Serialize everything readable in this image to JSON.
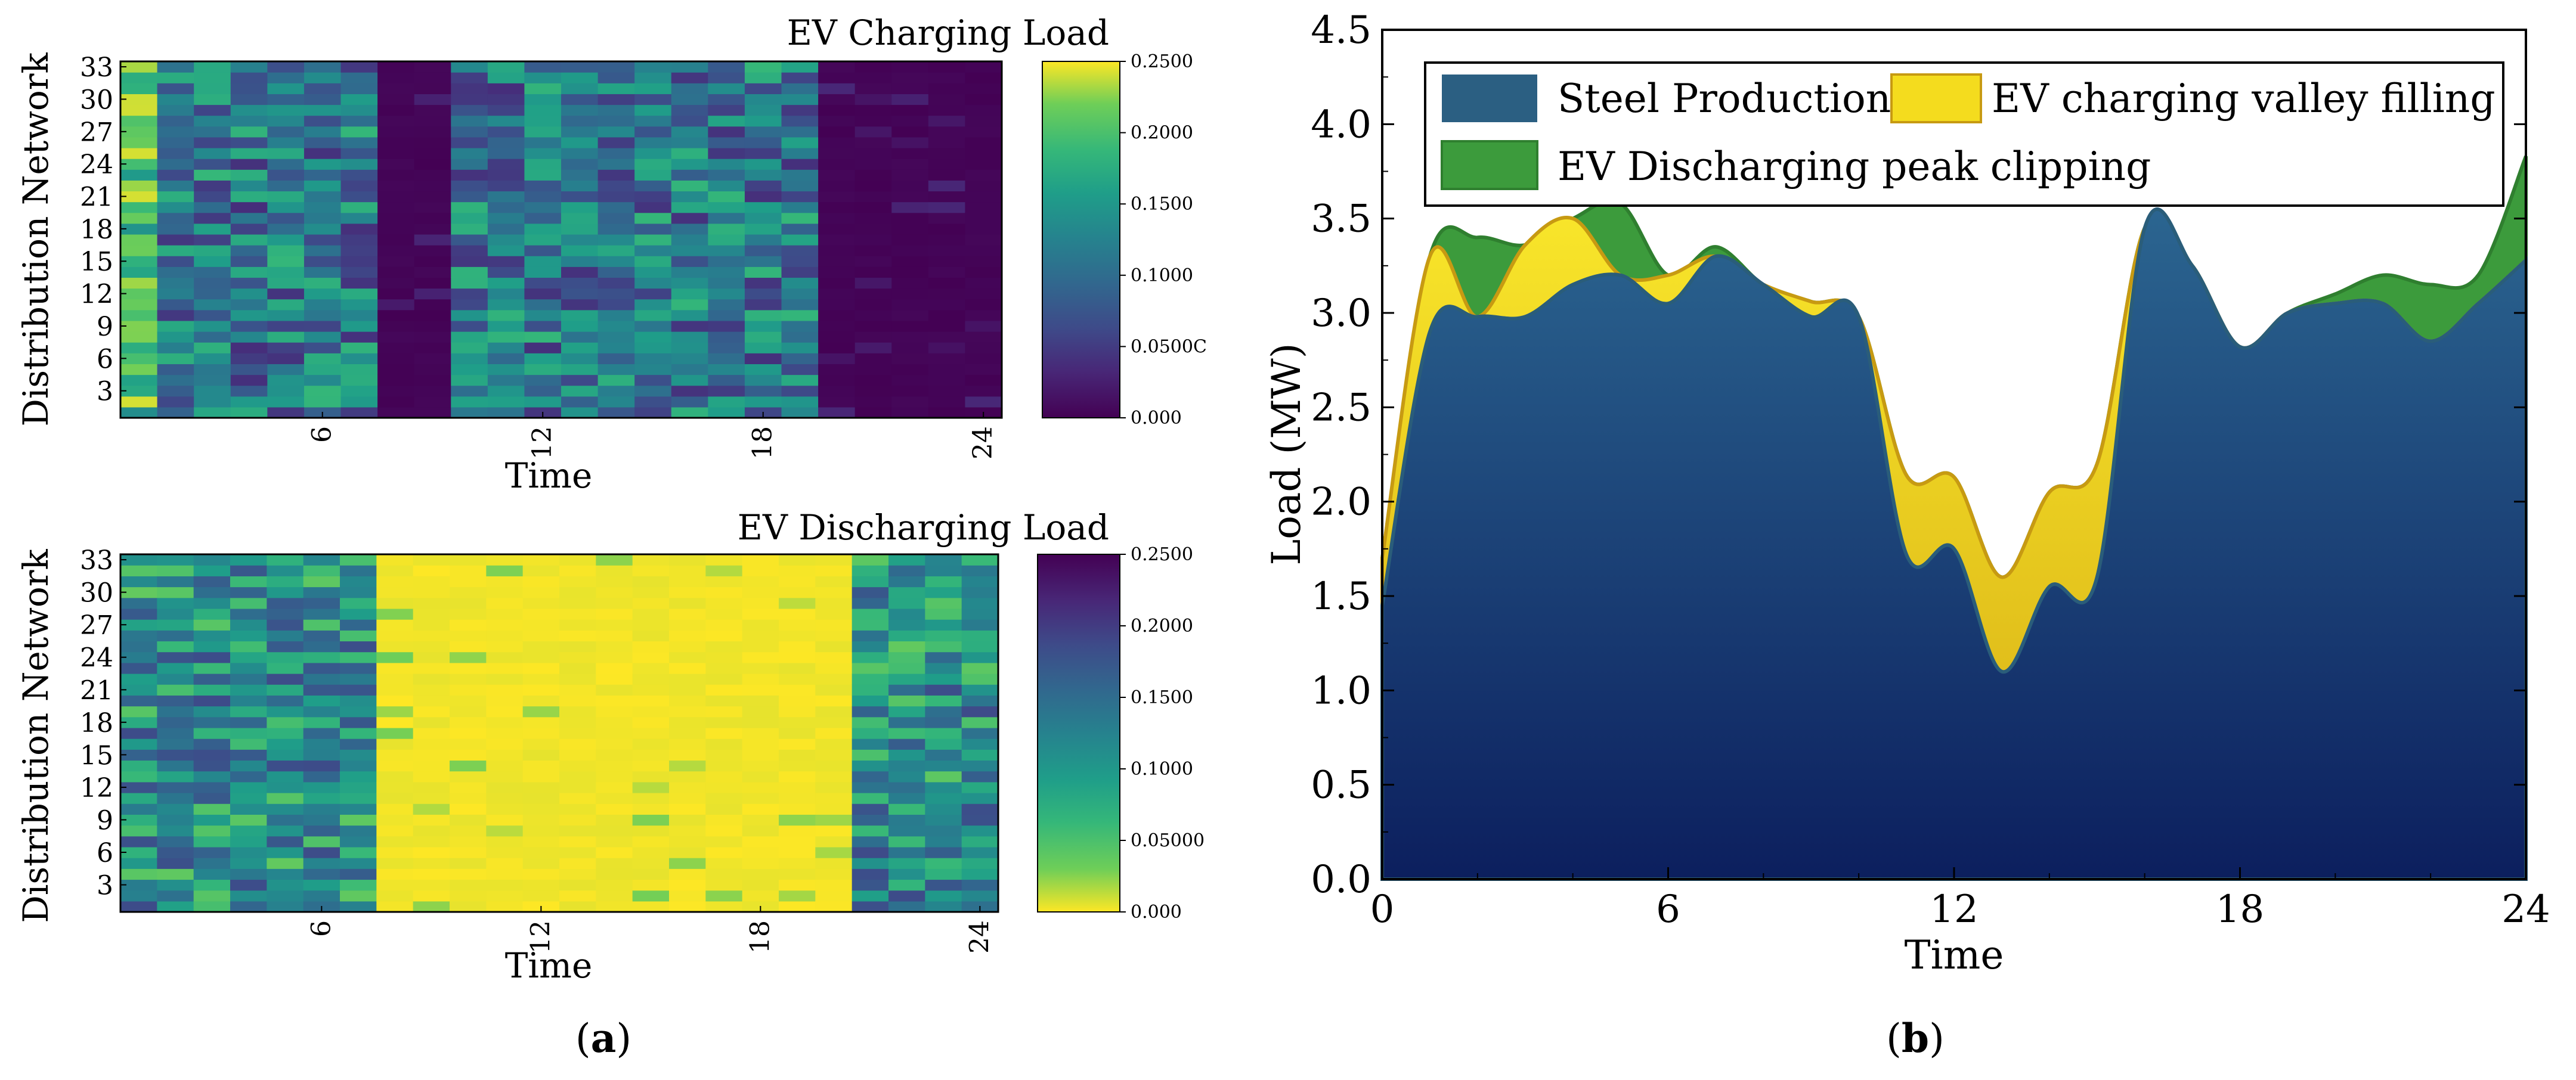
{
  "chart_data": [
    {
      "type": "heatmap",
      "title": "EV Charging Load",
      "xlabel": "Time",
      "ylabel": "Distribution Network",
      "xticks": [
        6,
        12,
        18,
        24
      ],
      "yticks": [
        3,
        6,
        9,
        12,
        15,
        18,
        21,
        24,
        27,
        30,
        33
      ],
      "x_range": [
        0,
        24
      ],
      "rows": 33,
      "colormap": "viridis",
      "colorbar": {
        "min": 0,
        "max": 0.25,
        "ticks": [
          "0.2500",
          "0.2000",
          "0.1500",
          "0.1000",
          "0.0500C",
          "0.000"
        ]
      },
      "description_of_values": "Hourly charging load per node; concentrated 0-7h and 9-19h, near zero otherwise",
      "active_hours": [
        [
          0,
          7
        ],
        [
          9,
          19
        ]
      ]
    },
    {
      "type": "heatmap",
      "title": "EV Discharging Load",
      "xlabel": "Time",
      "ylabel": "Distribution Network",
      "xticks": [
        6,
        12,
        18,
        24
      ],
      "yticks": [
        3,
        6,
        9,
        12,
        15,
        18,
        21,
        24,
        27,
        30,
        33
      ],
      "x_range": [
        0,
        24
      ],
      "rows": 33,
      "colormap": "viridis_reversed",
      "colorbar": {
        "min": 0,
        "max": 0.25,
        "ticks": [
          "0.2500",
          "0.2000",
          "0.1500",
          "0.1000",
          "0.05000",
          "0.000"
        ]
      },
      "active_hours": [
        [
          0,
          7
        ],
        [
          20,
          24
        ]
      ]
    },
    {
      "type": "area",
      "xlabel": "Time",
      "ylabel": "Load (MW)",
      "xlim": [
        0,
        24
      ],
      "ylim": [
        0,
        4.5
      ],
      "xticks": [
        0,
        6,
        12,
        18,
        24
      ],
      "yticks": [
        "0.0",
        "0.5",
        "1.0",
        "1.5",
        "2.0",
        "2.5",
        "3.0",
        "3.5",
        "4.0",
        "4.5"
      ],
      "x": [
        0,
        1,
        2,
        3,
        4,
        5,
        6,
        7,
        8,
        9,
        10,
        11,
        12,
        13,
        14,
        15,
        16,
        17,
        18,
        19,
        20,
        21,
        22,
        23,
        24
      ],
      "series": [
        {
          "name": "Steel Production",
          "color": "#1f4e79",
          "values": [
            1.45,
            2.9,
            2.98,
            2.98,
            3.15,
            3.2,
            3.05,
            3.3,
            3.15,
            2.98,
            2.98,
            1.72,
            1.75,
            1.1,
            1.55,
            1.6,
            3.45,
            3.25,
            2.82,
            3.0,
            3.05,
            3.05,
            2.85,
            3.05,
            3.28
          ]
        },
        {
          "name": "EV charging valley filling",
          "color": "#f4dc1e",
          "values": [
            0.25,
            0.4,
            0.0,
            0.38,
            0.35,
            0.0,
            0.15,
            0.0,
            0.0,
            0.08,
            0.0,
            0.42,
            0.38,
            0.5,
            0.5,
            0.6,
            0.0,
            0.0,
            0.0,
            0.0,
            0.0,
            0.0,
            0.0,
            0.0,
            0.0
          ]
        },
        {
          "name": "EV Discharging peak clipping",
          "color": "#3c9b3c",
          "values": [
            0.0,
            0.0,
            0.42,
            0.0,
            0.0,
            0.38,
            0.0,
            0.05,
            0.0,
            0.0,
            0.0,
            0.0,
            0.0,
            0.0,
            0.0,
            0.0,
            0.0,
            0.0,
            0.0,
            0.0,
            0.05,
            0.15,
            0.3,
            0.15,
            0.55
          ]
        }
      ],
      "legend_location": "top"
    }
  ],
  "panel_labels": {
    "a": "(a)",
    "a_letter": "a",
    "b": "(b)",
    "b_letter": "b"
  }
}
